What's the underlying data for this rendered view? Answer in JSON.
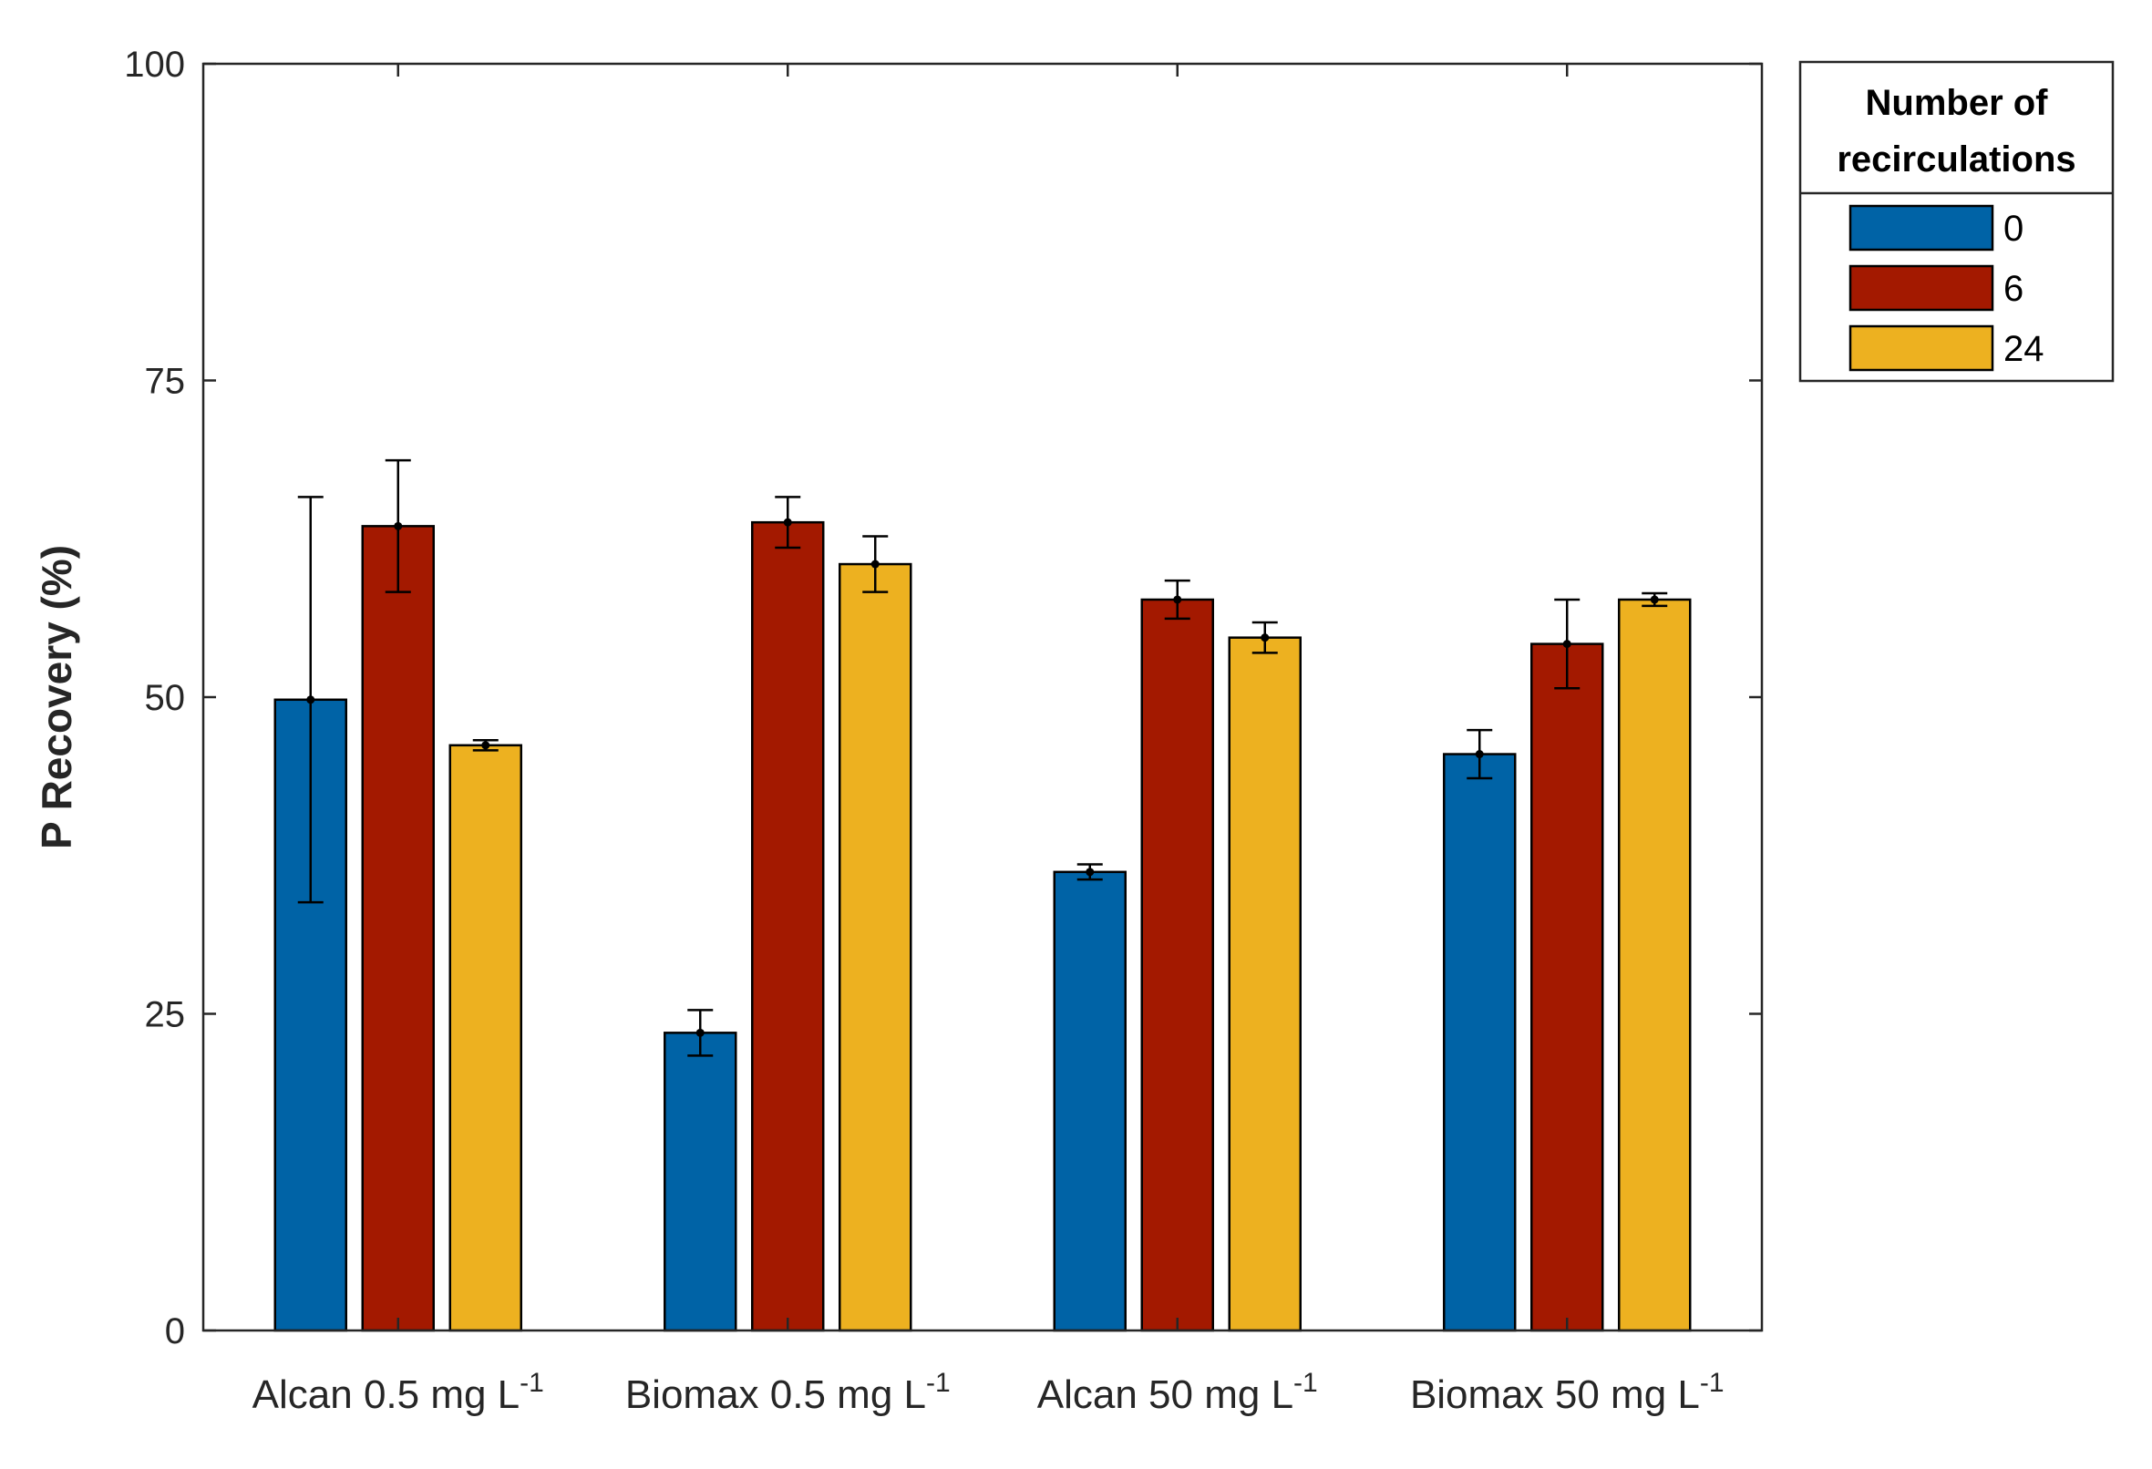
{
  "chart_data": {
    "type": "bar",
    "title": "",
    "xlabel": "",
    "ylabel": "P Recovery (%)",
    "ylim": [
      0,
      100
    ],
    "yticks": [
      "0",
      "25",
      "50",
      "75",
      "100"
    ],
    "grid": false,
    "categories": [
      {
        "main": "Alcan 0.5 mg L",
        "sup": "-1"
      },
      {
        "main": "Biomax 0.5 mg L",
        "sup": "-1"
      },
      {
        "main": "Alcan 50 mg L",
        "sup": "-1"
      },
      {
        "main": "Biomax 50 mg L",
        "sup": "-1"
      }
    ],
    "legend": {
      "title_line1": "Number of",
      "title_line2": "recirculations",
      "placement": "outside-top-right"
    },
    "series": [
      {
        "name": "0",
        "color": "#0063A6",
        "values": [
          49.8,
          23.5,
          36.2,
          45.5
        ],
        "errors": [
          16.0,
          1.8,
          0.6,
          1.9
        ]
      },
      {
        "name": "6",
        "color": "#A31900",
        "values": [
          63.5,
          63.8,
          57.7,
          54.2
        ],
        "errors": [
          5.2,
          2.0,
          1.5,
          3.5
        ]
      },
      {
        "name": "24",
        "color": "#EDB120",
        "values": [
          46.2,
          60.5,
          54.7,
          57.7
        ],
        "errors": [
          0.4,
          2.2,
          1.2,
          0.5
        ]
      }
    ]
  }
}
